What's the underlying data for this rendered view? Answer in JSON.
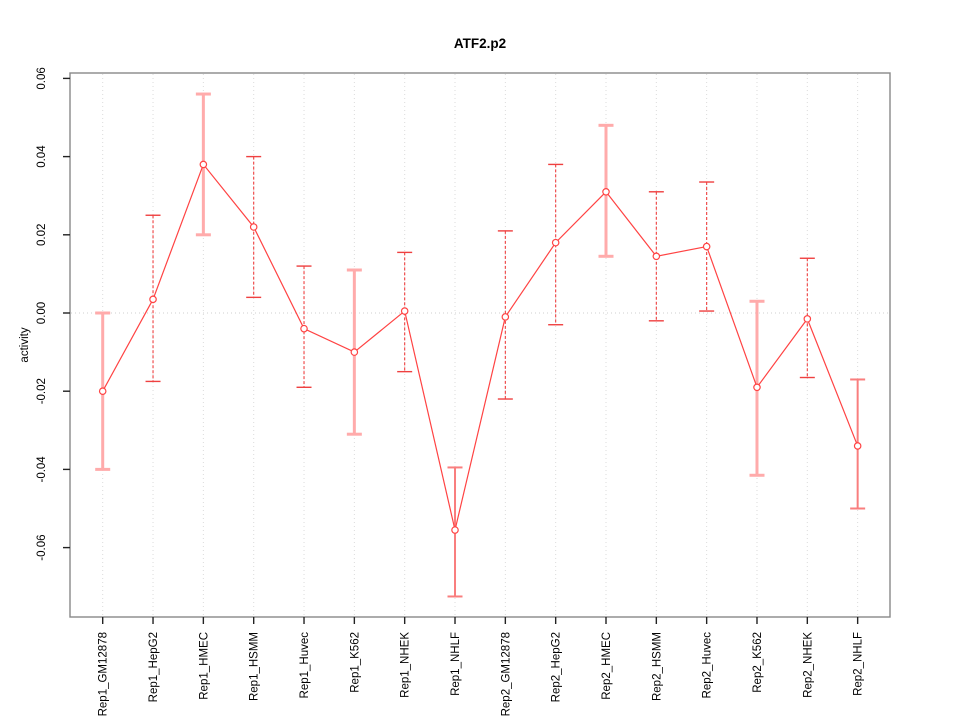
{
  "chart_data": {
    "type": "line",
    "title": "ATF2.p2",
    "xlabel": "",
    "ylabel": "activity",
    "ylim": [
      -0.078,
      0.0615
    ],
    "yticks": [
      0.06,
      0.04,
      0.02,
      0.0,
      -0.02,
      -0.04,
      -0.06
    ],
    "legend": "none",
    "grid": {
      "vertical": "dotted line at every category",
      "horizontal": "dotted line at y=0 only"
    },
    "categories": [
      "Rep1_GM12878",
      "Rep1_HepG2",
      "Rep1_HMEC",
      "Rep1_HSMM",
      "Rep1_Huvec",
      "Rep1_K562",
      "Rep1_NHEK",
      "Rep1_NHLF",
      "Rep2_GM12878",
      "Rep2_HepG2",
      "Rep2_HMEC",
      "Rep2_HSMM",
      "Rep2_Huvec",
      "Rep2_K562",
      "Rep2_NHEK",
      "Rep2_NHLF"
    ],
    "series": [
      {
        "name": "activity",
        "marker": "open-circle",
        "values": [
          -0.02,
          0.0035,
          0.038,
          0.022,
          -0.004,
          -0.01,
          0.0005,
          -0.0555,
          -0.001,
          0.018,
          0.031,
          0.0145,
          0.017,
          -0.019,
          -0.0015,
          -0.034
        ],
        "upper": [
          0.0,
          0.025,
          0.056,
          0.04,
          0.012,
          0.011,
          0.0155,
          -0.0395,
          0.021,
          0.038,
          0.048,
          0.031,
          0.0335,
          0.003,
          0.014,
          -0.017
        ],
        "lower": [
          -0.04,
          -0.0175,
          0.02,
          0.004,
          -0.019,
          -0.031,
          -0.015,
          -0.0725,
          -0.022,
          -0.003,
          0.0145,
          -0.002,
          0.0005,
          -0.0415,
          -0.0165,
          -0.05
        ],
        "bar_styles": [
          "light",
          "dashed",
          "light",
          "dashed",
          "dashed",
          "light",
          "dashed",
          "solid",
          "dashed",
          "dashed",
          "light",
          "dashed",
          "dashed",
          "light",
          "dashed",
          "solid"
        ]
      }
    ],
    "colors": {
      "line": "#FF4343",
      "marker": "#FF4343",
      "bar_light": "#FFABAB",
      "bar_dashed": "#EF4040",
      "bar_solid": "#F97E7E",
      "grid": "#DBDBDB",
      "zero_grid": "#CFCFCF",
      "axis_box": "#888888",
      "tick": "#222222",
      "text": "#000000"
    }
  }
}
